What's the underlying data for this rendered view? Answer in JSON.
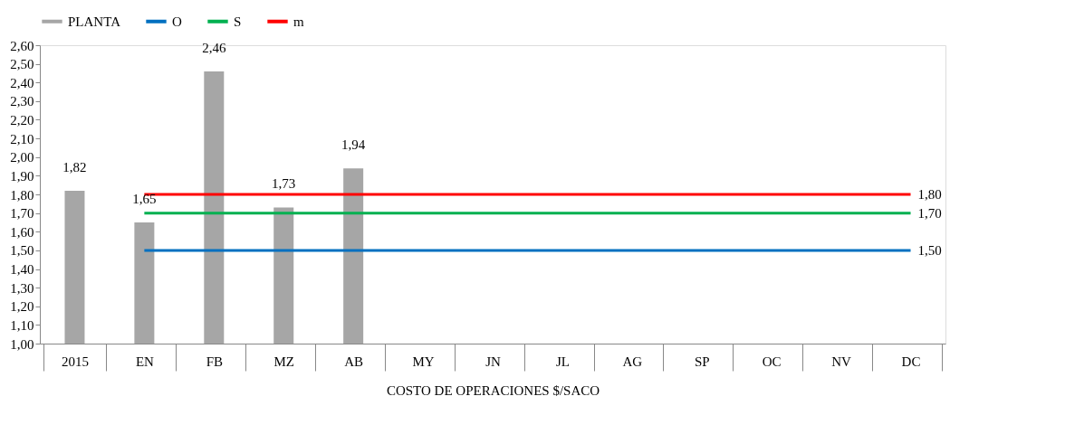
{
  "chart_data": {
    "type": "bar",
    "xlabel": "COSTO DE OPERACIONES $/SACO",
    "categories": [
      "2015",
      "EN",
      "FB",
      "MZ",
      "AB",
      "MY",
      "JN",
      "JL",
      "AG",
      "SP",
      "OC",
      "NV",
      "DC"
    ],
    "series": [
      {
        "name": "PLANTA",
        "color": "#a6a6a6",
        "values": [
          1.82,
          1.65,
          2.46,
          1.73,
          1.94,
          null,
          null,
          null,
          null,
          null,
          null,
          null,
          null
        ],
        "value_labels": [
          "1,82",
          "1,65",
          "2,46",
          "1,73",
          "1,94",
          null,
          null,
          null,
          null,
          null,
          null,
          null,
          null
        ]
      },
      {
        "name": "O",
        "type": "line",
        "color": "#0070c0",
        "values": [
          null,
          1.5,
          1.5,
          1.5,
          1.5,
          1.5,
          1.5,
          1.5,
          1.5,
          1.5,
          1.5,
          1.5,
          1.5
        ],
        "value_labels": [
          null,
          null,
          null,
          null,
          null,
          null,
          null,
          null,
          null,
          null,
          null,
          null,
          "1,50"
        ]
      },
      {
        "name": "S",
        "type": "line",
        "color": "#00b050",
        "values": [
          null,
          1.7,
          1.7,
          1.7,
          1.7,
          1.7,
          1.7,
          1.7,
          1.7,
          1.7,
          1.7,
          1.7,
          1.7
        ],
        "value_labels": [
          null,
          null,
          null,
          null,
          null,
          null,
          null,
          null,
          null,
          null,
          null,
          null,
          "1,70"
        ]
      },
      {
        "name": "m",
        "type": "line",
        "color": "#ff0000",
        "values": [
          null,
          1.8,
          1.8,
          1.8,
          1.8,
          1.8,
          1.8,
          1.8,
          1.8,
          1.8,
          1.8,
          1.8,
          1.8
        ],
        "value_labels": [
          null,
          null,
          null,
          null,
          null,
          null,
          null,
          null,
          null,
          null,
          null,
          null,
          "1,80"
        ]
      }
    ],
    "ylim": [
      1.0,
      2.6
    ],
    "yticks": [
      {
        "value": 1.0,
        "label": "1,00"
      },
      {
        "value": 1.1,
        "label": "1,10"
      },
      {
        "value": 1.2,
        "label": "1,20"
      },
      {
        "value": 1.3,
        "label": "1,30"
      },
      {
        "value": 1.4,
        "label": "1,40"
      },
      {
        "value": 1.5,
        "label": "1,50"
      },
      {
        "value": 1.6,
        "label": "1,60"
      },
      {
        "value": 1.7,
        "label": "1,70"
      },
      {
        "value": 1.8,
        "label": "1,80"
      },
      {
        "value": 1.9,
        "label": "1,90"
      },
      {
        "value": 2.0,
        "label": "2,00"
      },
      {
        "value": 2.1,
        "label": "2,10"
      },
      {
        "value": 2.2,
        "label": "2,20"
      },
      {
        "value": 2.3,
        "label": "2,30"
      },
      {
        "value": 2.4,
        "label": "2,40"
      },
      {
        "value": 2.5,
        "label": "2,50"
      },
      {
        "value": 2.6,
        "label": "2,60"
      }
    ],
    "grid": false,
    "legend": "top"
  }
}
